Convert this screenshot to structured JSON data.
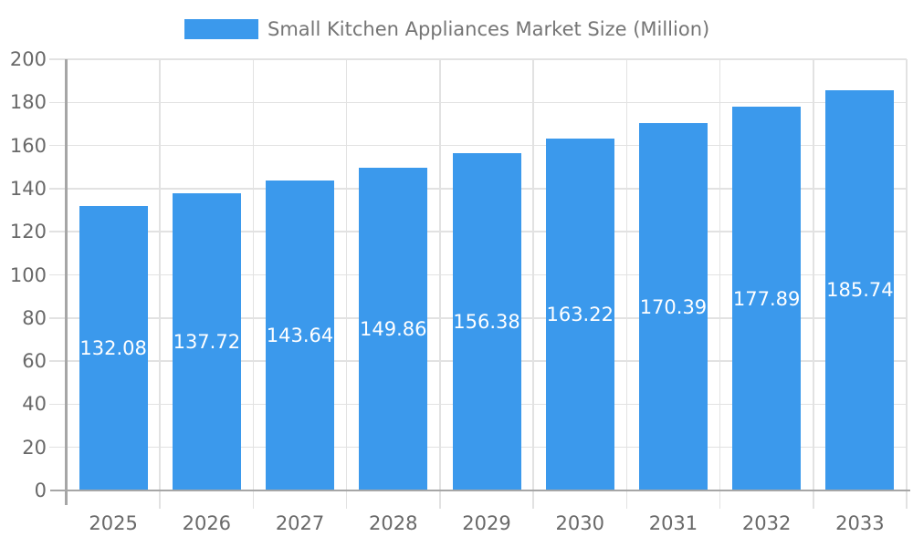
{
  "chart": {
    "colors": {
      "bar": "#3b99ec",
      "grid": "#e2e2e2",
      "axis": "#a6a6a6",
      "tick_label": "#696969",
      "legend_text": "#757575",
      "value_label": "#ffffff",
      "background": "#ffffff"
    }
  },
  "chart_data": {
    "type": "bar",
    "title": "Small Kitchen Appliances Market Size (Million)",
    "legend_label": "Small Kitchen Appliances Market Size (Million)",
    "categories": [
      "2025",
      "2026",
      "2027",
      "2028",
      "2029",
      "2030",
      "2031",
      "2032",
      "2033"
    ],
    "values": [
      132.08,
      137.72,
      143.64,
      149.86,
      156.38,
      163.22,
      170.39,
      177.89,
      185.74
    ],
    "value_label_format": "2-decimals",
    "value_label_position": "inside-center",
    "xlabel": "",
    "ylabel": "",
    "ylim": [
      0,
      200
    ],
    "ytick_step": 20,
    "ytick_labels": [
      "0",
      "20",
      "40",
      "60",
      "80",
      "100",
      "120",
      "140",
      "160",
      "180",
      "200"
    ],
    "grid": true,
    "legend_position": "top"
  }
}
